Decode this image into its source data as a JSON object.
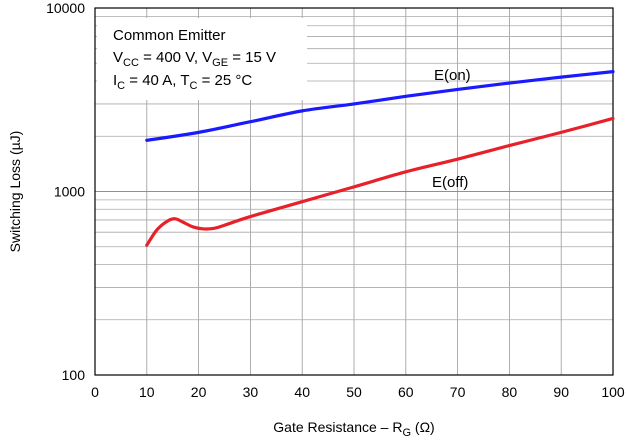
{
  "chart_data": {
    "type": "line",
    "title": "",
    "xlabel": {
      "text": "Gate Resistance – R",
      "sub": "G",
      "unit": " (Ω)"
    },
    "ylabel": "Switching Loss (µJ)",
    "xlim": [
      0,
      100
    ],
    "ylim": [
      100,
      10000
    ],
    "yscale": "log",
    "grid": true,
    "x_ticks": [
      "0",
      "10",
      "20",
      "30",
      "40",
      "50",
      "60",
      "70",
      "80",
      "90",
      "100"
    ],
    "y_ticks": [
      "100",
      "1000",
      "10000"
    ],
    "annotation": {
      "line1": "Common Emitter",
      "line2": [
        {
          "t": "V"
        },
        {
          "t": "CC",
          "sub": true
        },
        {
          "t": " = 400 V, V"
        },
        {
          "t": "GE",
          "sub": true
        },
        {
          "t": " = 15 V"
        }
      ],
      "line3": [
        {
          "t": "I"
        },
        {
          "t": "C",
          "sub": true
        },
        {
          "t": " = 40 A, T"
        },
        {
          "t": "C",
          "sub": true
        },
        {
          "t": " = 25 °C"
        }
      ]
    },
    "series": [
      {
        "name": "E(on)",
        "color": "#1a1aff",
        "x": [
          10,
          20,
          30,
          40,
          50,
          60,
          70,
          80,
          90,
          100
        ],
        "values": [
          1900,
          2100,
          2400,
          2750,
          3000,
          3300,
          3600,
          3900,
          4200,
          4500
        ]
      },
      {
        "name": "E(off)",
        "color": "#e8202a",
        "x": [
          10,
          12,
          14,
          15.5,
          17,
          19,
          21,
          23,
          25,
          30,
          40,
          50,
          60,
          70,
          80,
          90,
          100
        ],
        "values": [
          510,
          620,
          690,
          710,
          680,
          640,
          625,
          630,
          655,
          730,
          880,
          1060,
          1280,
          1500,
          1780,
          2100,
          2500
        ]
      }
    ]
  }
}
